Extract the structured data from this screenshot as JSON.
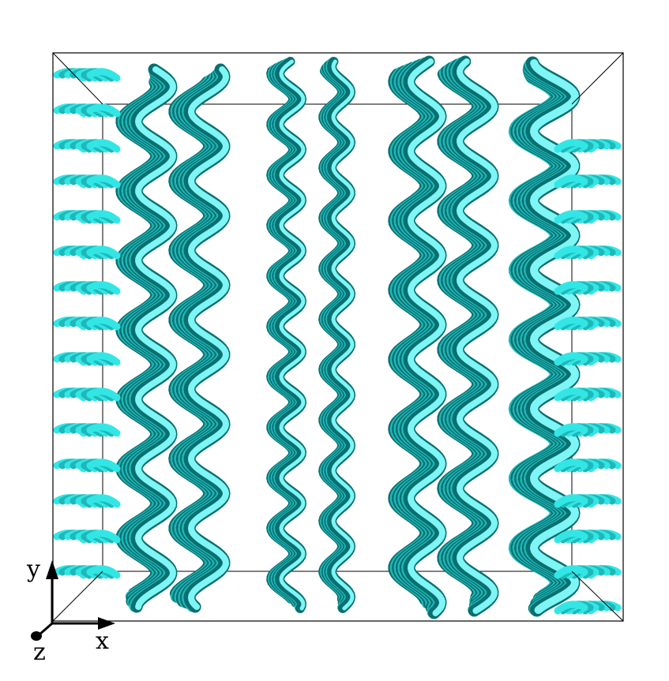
{
  "colors": {
    "background": "#ffffff",
    "ribbon_light": "#33e6e6",
    "ribbon_mid": "#1fb8b8",
    "ribbon_dark": "#0a6f70",
    "ribbon_highlight": "#7ff5f5",
    "box_line": "#000000",
    "axis": "#000000"
  },
  "axes": {
    "x_label": "x",
    "y_label": "y",
    "z_label": "z"
  }
}
